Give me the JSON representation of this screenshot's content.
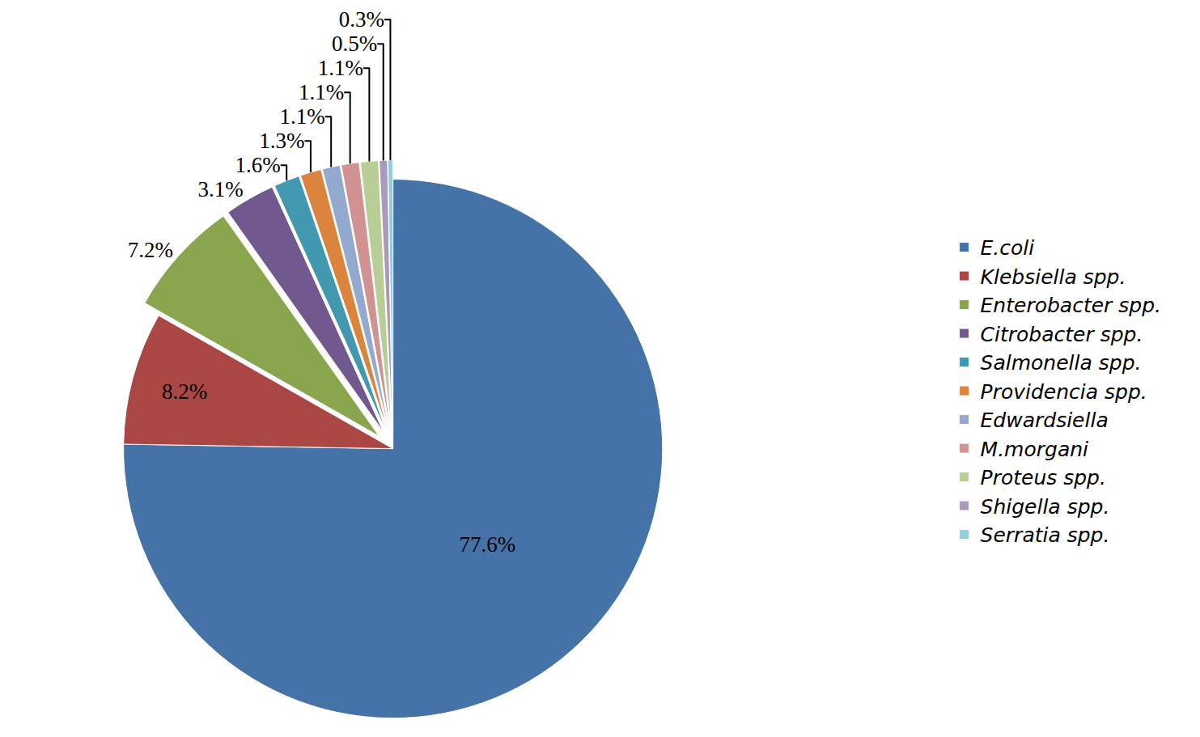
{
  "chart_data": {
    "type": "pie",
    "categories": [
      "E.coli",
      "Klebsiella spp.",
      "Enterobacter spp.",
      "Citrobacter spp.",
      "Salmonella spp.",
      "Providencia spp.",
      "Edwardsiella",
      "M.morgani",
      "Proteus spp.",
      "Shigella spp.",
      "Serratia spp."
    ],
    "values": [
      77.6,
      8.2,
      7.2,
      3.1,
      1.6,
      1.3,
      1.1,
      1.1,
      1.1,
      0.5,
      0.3
    ],
    "value_labels": [
      "77.6%",
      "8.2%",
      "7.2%",
      "3.1%",
      "1.6%",
      "1.3%",
      "1.1%",
      "1.1%",
      "1.1%",
      "0.5%",
      "0.3%"
    ],
    "colors": [
      "#4572A7",
      "#AA4643",
      "#89A54E",
      "#71588F",
      "#4198AF",
      "#DB843D",
      "#93A9CF",
      "#D19392",
      "#B9CD96",
      "#A99BBD",
      "#92CDDC"
    ],
    "data_labels": true,
    "legend": "right"
  }
}
